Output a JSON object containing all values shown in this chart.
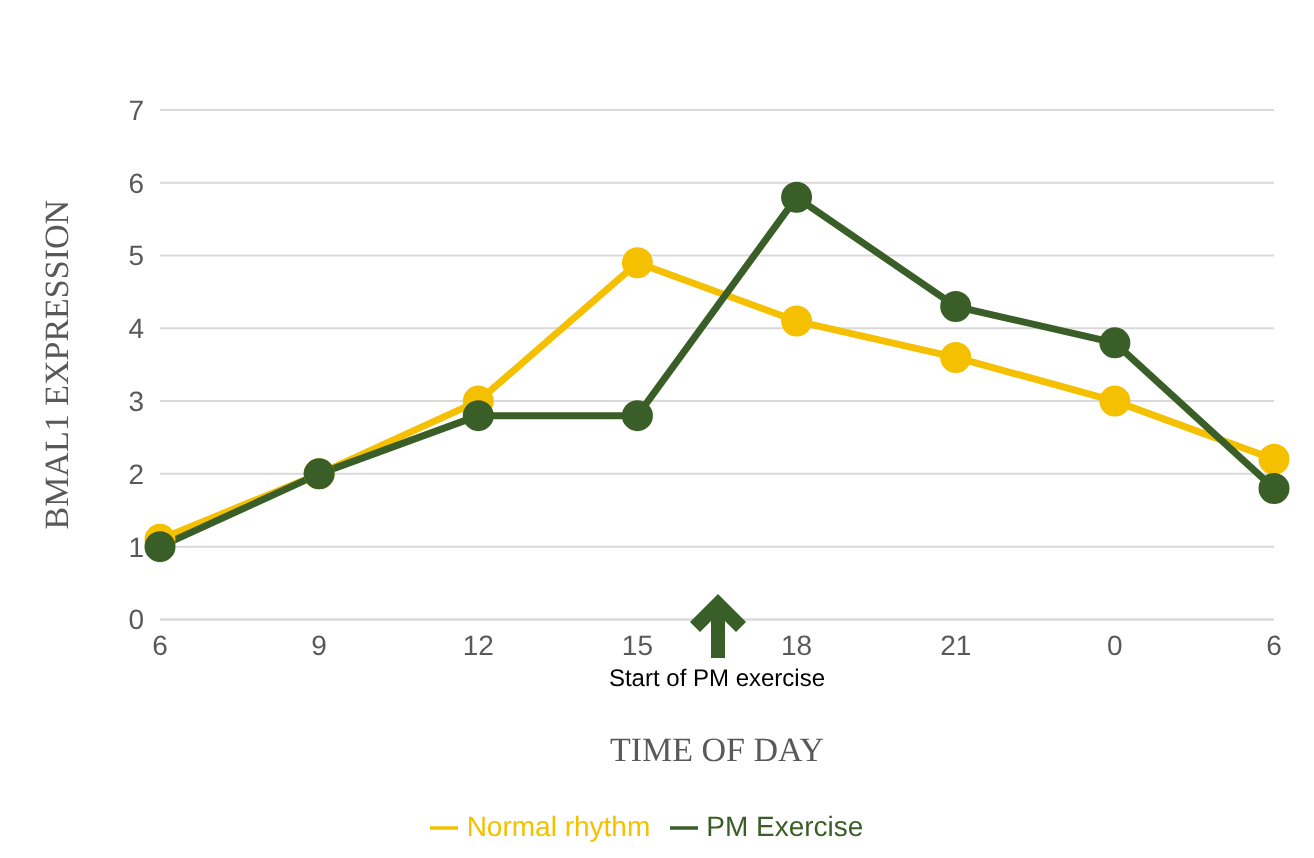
{
  "chart_data": {
    "type": "line",
    "ylabel": "BMAL1 EXPRESSION",
    "xlabel": "TIME OF DAY",
    "categories": [
      "6",
      "9",
      "12",
      "15",
      "18",
      "21",
      "0",
      "6"
    ],
    "series": [
      {
        "name": "Normal rhythm",
        "color": "#f5c000",
        "values": [
          1.1,
          2,
          3,
          4.9,
          4.1,
          3.6,
          3,
          2.2
        ]
      },
      {
        "name": "PM Exercise",
        "color": "#3a5e27",
        "values": [
          1,
          2,
          2.8,
          2.8,
          5.8,
          4.3,
          3.8,
          1.8
        ]
      }
    ],
    "ylim": [
      0,
      7
    ],
    "yticks": [
      0,
      1,
      2,
      3,
      4,
      5,
      6,
      7
    ],
    "grid": "y",
    "legend": "bottom",
    "marker": "circle",
    "line_style": "solid",
    "annotations": [
      "Start of PM exercise"
    ]
  }
}
